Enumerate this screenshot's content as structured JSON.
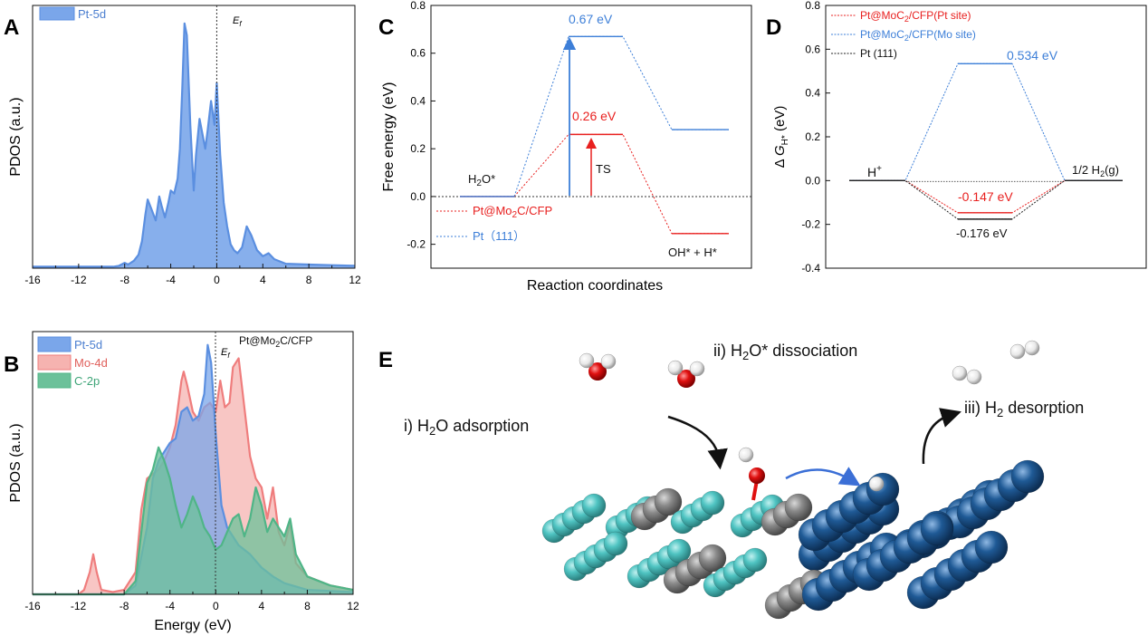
{
  "panels": {
    "A": "A",
    "B": "B",
    "C": "C",
    "D": "D",
    "E": "E"
  },
  "colors": {
    "pt": "#5b8fe0",
    "pt_fill": "#7aa6ea",
    "mo": "#ef7d7d",
    "mo_fill": "#f6b3b0",
    "c": "#4fb587",
    "c_fill": "#6cc19a",
    "red": "#e8201f",
    "blue": "#3d7fd8",
    "black": "#222222",
    "teal_atom": "#4fc4c2",
    "grey_atom": "#8a8a8a",
    "navy_atom": "#1f5a96",
    "o_atom": "#e01010",
    "h_atom": "#f2f2f2"
  },
  "chart_data": [
    {
      "id": "A",
      "type": "area",
      "ylabel": "PDOS (a.u.)",
      "xlim": [
        -16,
        12
      ],
      "xticks": [
        "-16",
        "-12",
        "-8",
        "-4",
        "0",
        "4",
        "8",
        "12"
      ],
      "fermi_label": "E_f",
      "legend": [
        "Pt-5d"
      ],
      "legend_placement": "top-left",
      "series": [
        {
          "name": "Pt-5d",
          "x": [
            -16,
            -9,
            -8.5,
            -8,
            -7.7,
            -7.2,
            -6.8,
            -6.5,
            -6.2,
            -6,
            -5.7,
            -5.3,
            -5,
            -4.8,
            -4.5,
            -4.2,
            -4,
            -3.7,
            -3.4,
            -3.2,
            -3,
            -2.8,
            -2.6,
            -2.3,
            -2,
            -1.8,
            -1.5,
            -1.2,
            -1,
            -0.8,
            -0.5,
            -0.2,
            0,
            0.3,
            0.6,
            0.9,
            1.2,
            1.5,
            1.8,
            2.2,
            2.6,
            3,
            3.5,
            4,
            4.5,
            5,
            6,
            8,
            10,
            12
          ],
          "y": [
            0.5,
            0.5,
            0.8,
            1.8,
            1.2,
            2.5,
            4.5,
            9,
            18,
            23,
            20,
            16,
            24,
            21,
            17,
            22,
            26,
            25,
            30,
            40,
            60,
            82,
            78,
            48,
            26,
            38,
            50,
            44,
            40,
            46,
            56,
            48,
            62,
            38,
            22,
            14,
            8,
            6,
            5,
            7,
            14,
            11,
            6,
            4,
            5,
            3,
            1.5,
            1.2,
            1,
            0.8
          ]
        }
      ]
    },
    {
      "id": "B",
      "type": "area",
      "ylabel": "PDOS (a.u.)",
      "xlabel": "Energy (eV)",
      "xlim": [
        -16,
        12
      ],
      "xticks": [
        "-16",
        "-12",
        "-8",
        "-4",
        "0",
        "4",
        "8",
        "12"
      ],
      "fermi_label": "E_f",
      "annotation": "Pt@Mo₂C/CFP",
      "legend": [
        "Pt-5d",
        "Mo-4d",
        "C-2p"
      ],
      "legend_placement": "top-left",
      "series": [
        {
          "name": "Mo-4d",
          "x": [
            -16,
            -12,
            -11.5,
            -11,
            -10.7,
            -10.4,
            -10,
            -9,
            -8,
            -7,
            -6.5,
            -6,
            -5.5,
            -5,
            -4.5,
            -4,
            -3.5,
            -3,
            -2.8,
            -2.5,
            -2,
            -1.5,
            -1,
            -0.5,
            0,
            0.4,
            0.8,
            1.2,
            1.5,
            2,
            2.5,
            3,
            3.5,
            4,
            4.5,
            5,
            5.5,
            6,
            6.5,
            7,
            8,
            10,
            12
          ],
          "y": [
            0,
            0,
            2,
            10,
            18,
            10,
            2,
            1,
            2,
            10,
            38,
            52,
            54,
            56,
            60,
            66,
            76,
            96,
            100,
            94,
            82,
            78,
            84,
            86,
            82,
            96,
            84,
            86,
            102,
            106,
            84,
            62,
            52,
            48,
            34,
            48,
            28,
            22,
            32,
            14,
            8,
            4,
            2
          ]
        },
        {
          "name": "Pt-5d",
          "x": [
            -16,
            -8,
            -7,
            -6,
            -5.5,
            -5,
            -4.5,
            -4,
            -3.5,
            -3,
            -2.5,
            -2,
            -1.5,
            -1,
            -0.7,
            -0.4,
            0,
            0.5,
            1,
            1.5,
            2,
            3,
            4,
            5,
            6,
            8,
            12
          ],
          "y": [
            0,
            0,
            4,
            30,
            52,
            60,
            64,
            68,
            70,
            82,
            84,
            78,
            80,
            90,
            112,
            104,
            72,
            40,
            30,
            26,
            22,
            18,
            12,
            8,
            5,
            2,
            1
          ]
        },
        {
          "name": "C-2p",
          "x": [
            -16,
            -8,
            -7,
            -6.5,
            -6,
            -5.5,
            -5,
            -4.5,
            -4,
            -3.5,
            -3,
            -2.5,
            -2,
            -1.5,
            -1,
            -0.5,
            0,
            0.5,
            1,
            1.5,
            2,
            2.5,
            3,
            3.5,
            4,
            4.5,
            5,
            5.5,
            6,
            6.5,
            7,
            8,
            10,
            12
          ],
          "y": [
            0,
            0,
            6,
            28,
            50,
            56,
            66,
            60,
            52,
            40,
            30,
            36,
            44,
            38,
            30,
            26,
            20,
            22,
            28,
            34,
            36,
            26,
            34,
            48,
            40,
            28,
            34,
            30,
            26,
            34,
            18,
            8,
            4,
            2
          ]
        }
      ]
    },
    {
      "id": "C",
      "type": "line",
      "ylabel": "Free energy (eV)",
      "xlabel": "Reaction coordinates",
      "ylim": [
        -0.3,
        0.8
      ],
      "yticks": [
        "-0.2",
        "0.0",
        "0.2",
        "0.4",
        "0.6",
        "0.8"
      ],
      "legend": [
        "Pt@Mo₂C/CFP",
        "Pt（111）"
      ],
      "legend_placement": "bottom-left",
      "labels": {
        "initial": "H₂O*",
        "final": "OH* + H*",
        "ts": "TS",
        "barrier_pt111": "0.67 eV",
        "barrier_mo2c": "0.26 eV"
      },
      "series": [
        {
          "name": "Pt@Mo₂C/CFP",
          "levels": [
            {
              "x": [
                0,
                1
              ],
              "y": 0.0
            },
            {
              "x": [
                2,
                3
              ],
              "y": 0.26
            },
            {
              "x": [
                4,
                5
              ],
              "y": -0.155
            }
          ]
        },
        {
          "name": "Pt（111）",
          "levels": [
            {
              "x": [
                0,
                1
              ],
              "y": 0.0
            },
            {
              "x": [
                2,
                3
              ],
              "y": 0.67
            },
            {
              "x": [
                4,
                5
              ],
              "y": 0.28
            }
          ]
        }
      ]
    },
    {
      "id": "D",
      "type": "line",
      "ylabel": "ΔG_H* (eV)",
      "ylim": [
        -0.4,
        0.8
      ],
      "yticks": [
        "-0.4",
        "-0.2",
        "0.0",
        "0.2",
        "0.4",
        "0.6",
        "0.8"
      ],
      "legend": [
        "Pt@MoC₂/CFP(Pt site)",
        "Pt@MoC₂/CFP(Mo site)",
        "Pt (111)"
      ],
      "legend_placement": "top-left",
      "labels": {
        "start": "H⁺",
        "end": "1/2 H₂(g)",
        "mo_site": "0.534 eV",
        "pt_site": "-0.147 eV",
        "pt111": "-0.176 eV"
      },
      "series": [
        {
          "name": "Pt@MoC₂/CFP(Pt site)",
          "values": [
            0,
            -0.147,
            0
          ]
        },
        {
          "name": "Pt@MoC₂/CFP(Mo site)",
          "values": [
            0,
            0.534,
            0
          ]
        },
        {
          "name": "Pt (111)",
          "values": [
            0,
            -0.176,
            0
          ]
        }
      ]
    }
  ],
  "schematic": {
    "step1": "i) H₂O adsorption",
    "step2": "ii) H₂O* dissociation",
    "step3": "iii) H₂ desorption"
  }
}
